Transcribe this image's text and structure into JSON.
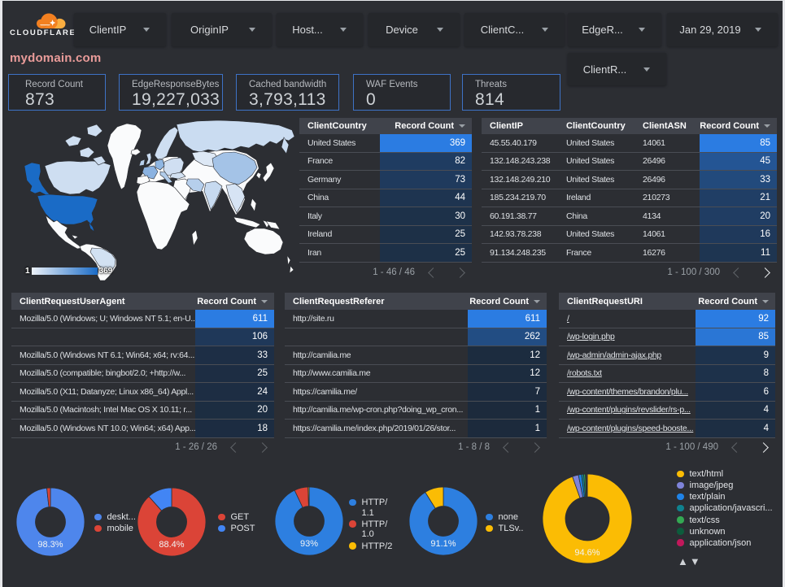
{
  "logo": {
    "brand": "CLOUDFLARE"
  },
  "filters": {
    "row1": [
      {
        "label": "ClientIP"
      },
      {
        "label": "OriginIP"
      },
      {
        "label": "Host..."
      },
      {
        "label": "Device"
      },
      {
        "label": "ClientC..."
      },
      {
        "label": "EdgeR..."
      }
    ],
    "date": {
      "label": "Jan 29, 2019"
    },
    "row2": [
      {
        "label": "ClientR..."
      }
    ]
  },
  "title": "mydomain.com",
  "scorecards": [
    {
      "label": "Record Count",
      "value": "873"
    },
    {
      "label": "EdgeResponseBytes",
      "value": "19,227,033"
    },
    {
      "label": "Cached bandwidth",
      "value": "3,793,113"
    },
    {
      "label": "WAF Events",
      "value": "0"
    },
    {
      "label": "Threats",
      "value": "814"
    }
  ],
  "heat": {
    "low": "#1c2a3c",
    "high": "#2b7ce2"
  },
  "chart_data": [
    {
      "type": "heatmap",
      "id": "map",
      "title": "",
      "legend": {
        "min": "1",
        "max": "369"
      },
      "color_low": "#edf2f9",
      "color_high": "#1a6bc6",
      "max": 369,
      "countries": {
        "United States": 369,
        "France": 82,
        "Germany": 73,
        "China": 44,
        "Italy": 30,
        "Ireland": 25,
        "Iran": 25,
        "India": 12,
        "Russia": 10,
        "United Kingdom": 10,
        "Canada": 8,
        "Poland": 7,
        "Brazil": 6,
        "Turkey": 6,
        "Sweden": 8,
        "Vietnam": 4,
        "Kazakhstan": 2
      }
    },
    {
      "type": "table",
      "id": "country_table",
      "headers": [
        "ClientCountry",
        "Record Count"
      ],
      "rows": [
        [
          "United States",
          369
        ],
        [
          "France",
          82
        ],
        [
          "Germany",
          73
        ],
        [
          "China",
          44
        ],
        [
          "Italy",
          30
        ],
        [
          "Ireland",
          25
        ],
        [
          "Iran",
          25
        ]
      ],
      "max": 369,
      "footer": "1 - 46 / 46",
      "prev_enabled": false,
      "next_enabled": false
    },
    {
      "type": "table",
      "id": "clientip_table",
      "headers": [
        "ClientIP",
        "ClientCountry",
        "ClientASN",
        "Record Count"
      ],
      "rows": [
        [
          "45.55.40.179",
          "United States",
          "14061",
          85
        ],
        [
          "132.148.243.238",
          "United States",
          "26496",
          45
        ],
        [
          "132.148.249.210",
          "United States",
          "26496",
          33
        ],
        [
          "185.234.219.70",
          "Ireland",
          "210273",
          21
        ],
        [
          "60.191.38.77",
          "China",
          "4134",
          20
        ],
        [
          "142.93.78.238",
          "United States",
          "14061",
          16
        ],
        [
          "91.134.248.235",
          "France",
          "16276",
          11
        ]
      ],
      "max": 85,
      "footer": "1 - 100 / 300",
      "prev_enabled": false,
      "next_enabled": true
    },
    {
      "type": "table",
      "id": "ua_table",
      "headers": [
        "ClientRequestUserAgent",
        "Record Count"
      ],
      "rows": [
        [
          "Mozilla/5.0 (Windows; U; Windows NT 5.1; en-U...",
          611
        ],
        [
          "",
          106
        ],
        [
          "Mozilla/5.0 (Windows NT 6.1; Win64; x64; rv:64....",
          33
        ],
        [
          "Mozilla/5.0 (compatible; bingbot/2.0; +http://w...",
          25
        ],
        [
          "Mozilla/5.0 (X11; Datanyze; Linux x86_64) Appl...",
          24
        ],
        [
          "Mozilla/5.0 (Macintosh; Intel Mac OS X 10.11; r...",
          20
        ],
        [
          "Mozilla/5.0 (Windows NT 10.0; Win64; x64) App...",
          18
        ]
      ],
      "max": 611,
      "footer": "1 - 26 / 26",
      "prev_enabled": false,
      "next_enabled": false
    },
    {
      "type": "table",
      "id": "referer_table",
      "headers": [
        "ClientRequestReferer",
        "Record Count"
      ],
      "rows": [
        [
          "http://site.ru",
          611
        ],
        [
          "",
          262
        ],
        [
          "http://camilia.me",
          12
        ],
        [
          "http://www.camilia.me",
          12
        ],
        [
          "https://camilia.me/",
          7
        ],
        [
          "http://camilia.me/wp-cron.php?doing_wp_cron...",
          1
        ],
        [
          "https://camilia.me/index.php/2019/01/26/stor...",
          1
        ]
      ],
      "max": 611,
      "footer": "1 - 8 / 8",
      "prev_enabled": false,
      "next_enabled": false
    },
    {
      "type": "table",
      "id": "uri_table",
      "links": true,
      "headers": [
        "ClientRequestURI",
        "Record Count"
      ],
      "rows": [
        [
          "/",
          92
        ],
        [
          "/wp-login.php",
          85
        ],
        [
          "/wp-admin/admin-ajax.php",
          9
        ],
        [
          "/robots.txt",
          8
        ],
        [
          "/wp-content/themes/brandon/plu...",
          6
        ],
        [
          "/wp-content/plugins/revslider/rs-p...",
          4
        ],
        [
          "/wp-content/plugins/speed-booste...",
          4
        ]
      ],
      "max": 92,
      "footer": "1 - 100 / 490",
      "prev_enabled": false,
      "next_enabled": true
    },
    {
      "type": "pie",
      "id": "device_donut",
      "percent_label": "98.3%",
      "segments": [
        {
          "label": "deskt...",
          "value": 98.3,
          "color": "#4e86ec"
        },
        {
          "label": "mobile",
          "value": 1.7,
          "color": "#db4437"
        }
      ]
    },
    {
      "type": "pie",
      "id": "method_donut",
      "percent_label": "88.4%",
      "segments": [
        {
          "label": "GET",
          "value": 88.4,
          "color": "#db4437"
        },
        {
          "label": "POST",
          "value": 11.6,
          "color": "#4285f4"
        }
      ]
    },
    {
      "type": "pie",
      "id": "protocol_donut",
      "percent_label": "93%",
      "segments": [
        {
          "label": "HTTP/1.1",
          "value": 93,
          "color": "#2d7fe0"
        },
        {
          "label": "HTTP/1.0",
          "value": 6.5,
          "color": "#db4437"
        },
        {
          "label": "HTTP/2",
          "value": 0.5,
          "color": "#fbbc04"
        }
      ]
    },
    {
      "type": "pie",
      "id": "tls_donut",
      "percent_label": "91.1%",
      "segments": [
        {
          "label": "none",
          "value": 91.1,
          "color": "#2d7fe0"
        },
        {
          "label": "TLSv..",
          "value": 8.9,
          "color": "#fbbc04"
        }
      ]
    },
    {
      "type": "pie",
      "id": "content_donut",
      "percent_label": "94.6%",
      "legend_pager": true,
      "segments": [
        {
          "label": "text/html",
          "value": 94.6,
          "color": "#fbbc04"
        },
        {
          "label": "image/jpeg",
          "value": 2.2,
          "color": "#7e83d9"
        },
        {
          "label": "text/plain",
          "value": 1.1,
          "color": "#1f83e8"
        },
        {
          "label": "application/javascri...",
          "value": 0.8,
          "color": "#0f828f"
        },
        {
          "label": "text/css",
          "value": 0.6,
          "color": "#34a853"
        },
        {
          "label": "unknown",
          "value": 0.4,
          "color": "#0d5c3c"
        },
        {
          "label": "application/json",
          "value": 0.3,
          "color": "#c2185b"
        }
      ]
    }
  ]
}
